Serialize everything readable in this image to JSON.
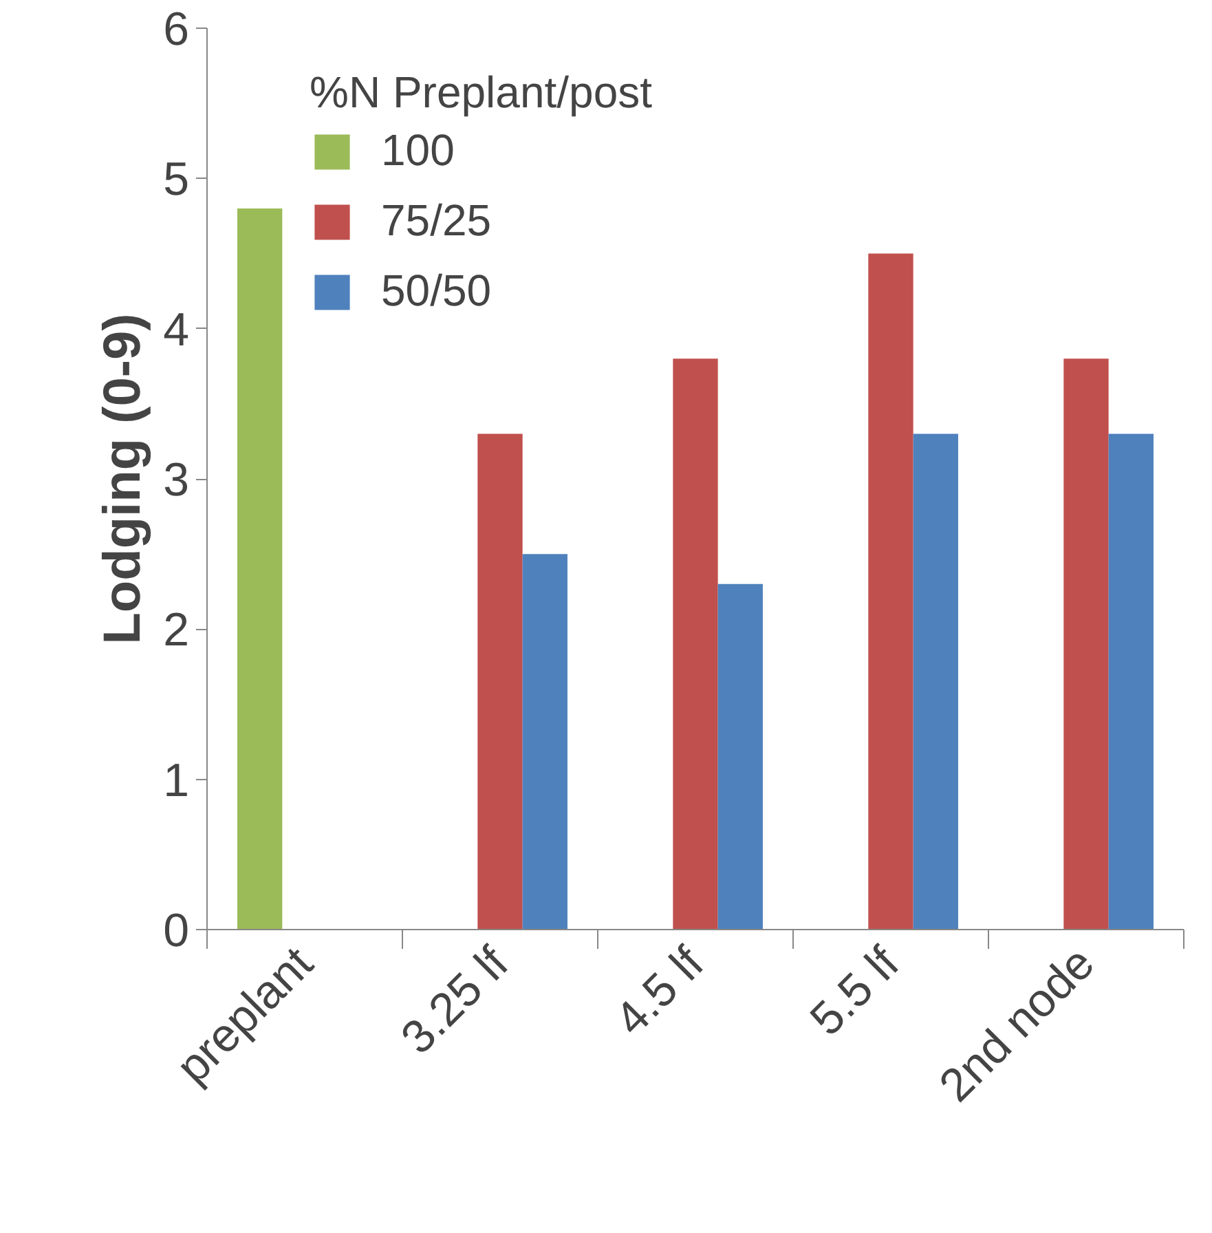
{
  "chart_data": {
    "type": "bar",
    "ylabel": "Lodging (0-9)",
    "legend_title": "%N Preplant/post",
    "categories": [
      "preplant",
      "3.25 lf",
      "4.5 lf",
      "5.5 lf",
      "2nd node"
    ],
    "series": [
      {
        "name": "100",
        "color": "#9bbb59",
        "values": [
          4.8,
          null,
          null,
          null,
          null
        ]
      },
      {
        "name": "75/25",
        "color": "#c0504d",
        "values": [
          null,
          3.3,
          3.8,
          4.5,
          3.8
        ]
      },
      {
        "name": "50/50",
        "color": "#4f81bd",
        "values": [
          null,
          2.5,
          2.3,
          3.3,
          3.3
        ]
      }
    ],
    "ylim": [
      0,
      6
    ],
    "yticks": [
      0,
      1,
      2,
      3,
      4,
      5,
      6
    ],
    "grid": false,
    "legend": "top left"
  }
}
